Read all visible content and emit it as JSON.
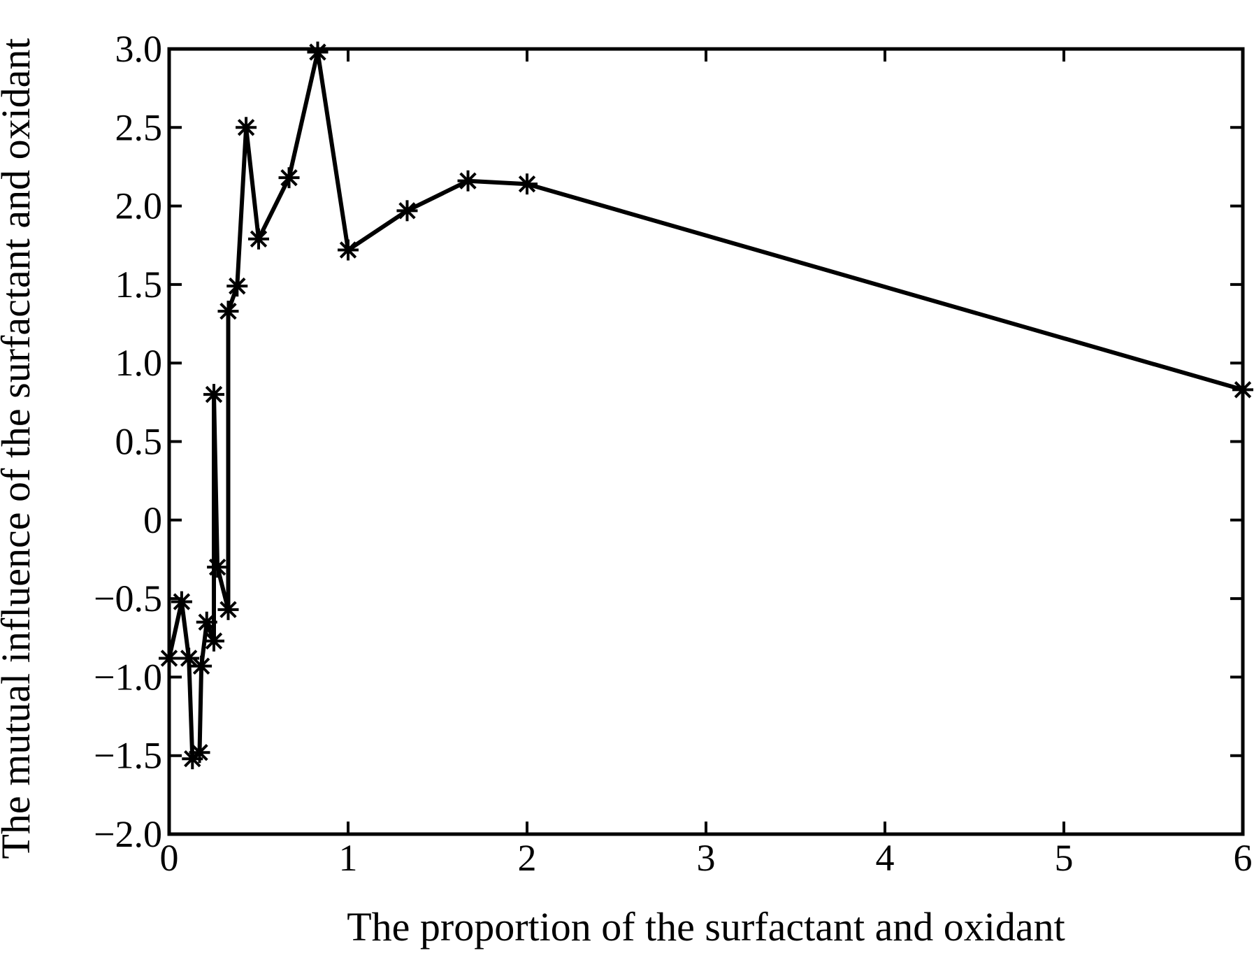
{
  "chart_data": {
    "type": "line",
    "title": "",
    "xlabel": "The proportion of the surfactant and oxidant",
    "ylabel": "The mutual influence of the surfactant and oxidant",
    "xlim": [
      0,
      6
    ],
    "ylim": [
      -2.0,
      3.0
    ],
    "x_ticks": [
      0,
      1,
      2,
      3,
      4,
      5,
      6
    ],
    "x_tick_labels": [
      "0",
      "1",
      "2",
      "3",
      "4",
      "5",
      "6"
    ],
    "y_ticks": [
      -2.0,
      -1.5,
      -1.0,
      -0.5,
      0,
      0.5,
      1.0,
      1.5,
      2.0,
      2.5,
      3.0
    ],
    "y_tick_labels": [
      "−2.0",
      "−1.5",
      "−1.0",
      "−0.5",
      "0",
      "0.5",
      "1.0",
      "1.5",
      "2.0",
      "2.5",
      "3.0"
    ],
    "grid": false,
    "marker": "asterisk",
    "line_color": "#000000",
    "series": [
      {
        "points": [
          [
            0.0,
            -0.88
          ],
          [
            0.07,
            -0.52
          ],
          [
            0.11,
            -0.88
          ],
          [
            0.13,
            -1.52
          ],
          [
            0.17,
            -1.48
          ],
          [
            0.18,
            -0.93
          ],
          [
            0.21,
            -0.65
          ],
          [
            0.25,
            -0.77
          ],
          [
            0.25,
            0.8
          ],
          [
            0.27,
            -0.3
          ],
          [
            0.33,
            -0.57
          ],
          [
            0.33,
            1.33
          ],
          [
            0.38,
            1.49
          ],
          [
            0.43,
            2.5
          ],
          [
            0.5,
            1.79
          ],
          [
            0.67,
            2.18
          ],
          [
            0.83,
            2.98
          ],
          [
            1.0,
            1.72
          ],
          [
            1.33,
            1.97
          ],
          [
            1.67,
            2.16
          ],
          [
            2.0,
            2.14
          ],
          [
            6.0,
            0.83
          ]
        ]
      }
    ]
  }
}
